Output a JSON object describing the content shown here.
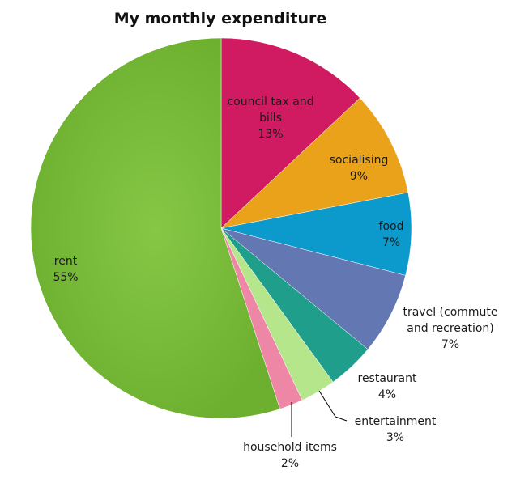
{
  "chart_data": {
    "type": "pie",
    "title": "My monthly expenditure",
    "start_angle_deg": 0,
    "direction": "clockwise",
    "legend": "none",
    "slices": [
      {
        "label": "council tax and bills",
        "label_lines": [
          "council tax and",
          "bills"
        ],
        "value": 13,
        "value_label": "13%",
        "color": "#D01A61"
      },
      {
        "label": "socialising",
        "label_lines": [
          "socialising"
        ],
        "value": 9,
        "value_label": "9%",
        "color": "#E9A21A"
      },
      {
        "label": "food",
        "label_lines": [
          "food"
        ],
        "value": 7,
        "value_label": "7%",
        "color": "#0C9ACD"
      },
      {
        "label": "travel (commute and recreation)",
        "label_lines": [
          "travel (commute",
          "and recreation)"
        ],
        "value": 7,
        "value_label": "7%",
        "color": "#6377B2"
      },
      {
        "label": "restaurant",
        "label_lines": [
          "restaurant"
        ],
        "value": 4,
        "value_label": "4%",
        "color": "#1F9E8C"
      },
      {
        "label": "entertainment",
        "label_lines": [
          "entertainment"
        ],
        "value": 3,
        "value_label": "3%",
        "color": "#B5E68C"
      },
      {
        "label": "household items",
        "label_lines": [
          "household items"
        ],
        "value": 2,
        "value_label": "2%",
        "color": "#EE86A5"
      },
      {
        "label": "rent",
        "label_lines": [
          "rent"
        ],
        "value": 55,
        "value_label": "55%",
        "color": "#76B936"
      }
    ]
  }
}
